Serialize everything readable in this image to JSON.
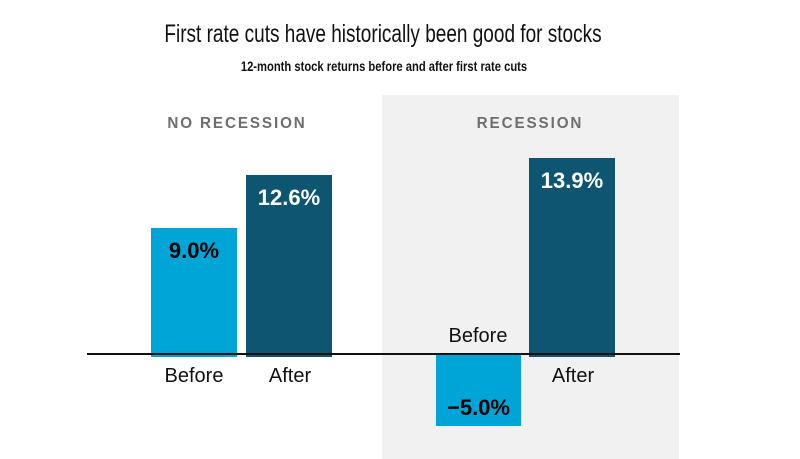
{
  "chart_data": {
    "type": "bar",
    "title": "First rate cuts have historically been good for stocks",
    "subtitle": "12-month stock returns before and after first rate cuts",
    "categories": [
      "Before",
      "After"
    ],
    "groups": [
      {
        "label": "NO RECESSION",
        "bars": [
          {
            "category": "Before",
            "value": 9.0,
            "display": "9.0%"
          },
          {
            "category": "After",
            "value": 12.6,
            "display": "12.6%"
          }
        ]
      },
      {
        "label": "RECESSION",
        "bars": [
          {
            "category": "Before",
            "value": -5.0,
            "display": "−5.0%"
          },
          {
            "category": "After",
            "value": 13.9,
            "display": "13.9%"
          }
        ]
      }
    ],
    "baseline": 0,
    "grid": false,
    "legend": "none",
    "colors": {
      "before_bar": "#00a5d8",
      "after_bar": "#0d5570",
      "recession_panel": "#f0f1f0",
      "group_header_text": "#6d6e70",
      "axis_line": "#111111",
      "value_label_on_light": "#000000",
      "value_label_on_dark": "#ffffff"
    }
  }
}
